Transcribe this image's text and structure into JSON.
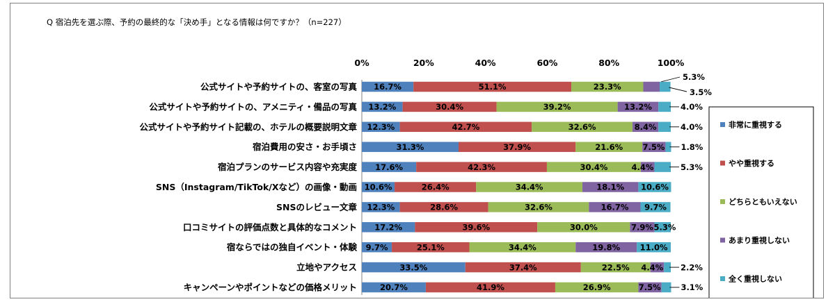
{
  "chart_data": {
    "type": "bar",
    "orientation": "horizontal",
    "stacked": true,
    "title": "Q 宿泊先を選ぶ際、予約の最終的な「決め手」となる情報は何ですか？（n=227）",
    "xlabel": "",
    "ylabel": "",
    "xlim": [
      0,
      100
    ],
    "x_ticks": [
      "0%",
      "20%",
      "40%",
      "60%",
      "80%",
      "100%"
    ],
    "grid": false,
    "legend_position": "right",
    "categories": [
      "公式サイトや予約サイトの、客室の写真",
      "公式サイトや予約サイトの、アメニティ・備品の写真",
      "公式サイトや予約サイト記載の、ホテルの概要説明文章",
      "宿泊費用の安さ・お手頃さ",
      "宿泊プランのサービス内容や充実度",
      "SNS（Instagram/TikTok/Xなど）の画像・動画",
      "SNSのレビュー文章",
      "口コミサイトの評価点数と具体的なコメント",
      "宿ならではの独自イベント・体験",
      "立地やアクセス",
      "キャンペーンやポイントなどの価格メリット"
    ],
    "series": [
      {
        "name": "非常に重視する",
        "color": "#4f81bd",
        "values": [
          16.7,
          13.2,
          12.3,
          31.3,
          17.6,
          10.6,
          12.3,
          17.2,
          9.7,
          33.5,
          20.7
        ]
      },
      {
        "name": "やや重視する",
        "color": "#c0504d",
        "values": [
          51.1,
          30.4,
          42.7,
          37.9,
          42.3,
          26.4,
          28.6,
          39.6,
          25.1,
          37.4,
          41.9
        ]
      },
      {
        "name": "どちらともいえない",
        "color": "#9bbb59",
        "values": [
          23.3,
          39.2,
          32.6,
          21.6,
          30.4,
          34.4,
          32.6,
          30.0,
          34.4,
          22.5,
          26.9
        ]
      },
      {
        "name": "あまり重視しない",
        "color": "#8064a2",
        "values": [
          5.3,
          13.2,
          8.4,
          7.5,
          4.4,
          18.1,
          16.7,
          7.9,
          19.8,
          4.4,
          7.5
        ]
      },
      {
        "name": "全く重視しない",
        "color": "#4bacc6",
        "values": [
          3.5,
          4.0,
          4.0,
          1.8,
          5.3,
          10.6,
          9.7,
          5.3,
          11.0,
          2.2,
          3.1
        ]
      }
    ],
    "data_labels": [
      [
        "16.7%",
        "51.1%",
        "23.3%",
        "5.3%",
        "3.5%"
      ],
      [
        "13.2%",
        "30.4%",
        "39.2%",
        "13.2%",
        "4.0%"
      ],
      [
        "12.3%",
        "42.7%",
        "32.6%",
        "8.4%",
        "4.0%"
      ],
      [
        "31.3%",
        "37.9%",
        "21.6%",
        "7.5%",
        "1.8%"
      ],
      [
        "17.6%",
        "42.3%",
        "30.4%",
        "4.4%",
        "5.3%"
      ],
      [
        "10.6%",
        "26.4%",
        "34.4%",
        "18.1%",
        "10.6%"
      ],
      [
        "12.3%",
        "28.6%",
        "32.6%",
        "16.7%",
        "9.7%"
      ],
      [
        "17.2%",
        "39.6%",
        "30.0%",
        "7.9%",
        "5.3%"
      ],
      [
        "9.7%",
        "25.1%",
        "34.4%",
        "19.8%",
        "11.0%"
      ],
      [
        "33.5%",
        "37.4%",
        "22.5%",
        "4.4%",
        "2.2%"
      ],
      [
        "20.7%",
        "41.9%",
        "26.9%",
        "7.5%",
        "3.1%"
      ]
    ]
  }
}
